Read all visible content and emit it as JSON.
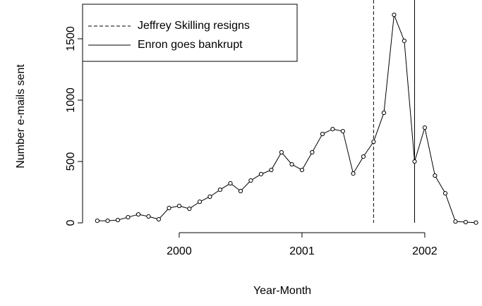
{
  "chart_data": {
    "type": "line",
    "xlabel": "Year-Month",
    "ylabel": "Number e-mails sent",
    "x": [
      1999.333,
      1999.417,
      1999.5,
      1999.583,
      1999.667,
      1999.75,
      1999.833,
      1999.917,
      2000.0,
      2000.083,
      2000.167,
      2000.25,
      2000.333,
      2000.417,
      2000.5,
      2000.583,
      2000.667,
      2000.75,
      2000.833,
      2000.917,
      2001.0,
      2001.083,
      2001.167,
      2001.25,
      2001.333,
      2001.417,
      2001.5,
      2001.583,
      2001.667,
      2001.75,
      2001.833,
      2001.917,
      2002.0,
      2002.083,
      2002.167,
      2002.25,
      2002.333,
      2002.417
    ],
    "series": [
      {
        "color": "#000000",
        "values": [
          17,
          17,
          23,
          46,
          69,
          52,
          29,
          121,
          138,
          115,
          172,
          213,
          270,
          322,
          259,
          345,
          397,
          431,
          575,
          477,
          431,
          575,
          724,
          764,
          747,
          402,
          540,
          661,
          897,
          1695,
          1483,
          500,
          776,
          385,
          241,
          11,
          6,
          2
        ]
      }
    ],
    "events": [
      {
        "label": "Jeffrey Skilling resigns",
        "x": 2001.583,
        "style": "dashed"
      },
      {
        "label": "Enron goes bankrupt",
        "x": 2001.917,
        "style": "solid"
      }
    ],
    "xlim": [
      1999.213,
      2002.466
    ],
    "ylim": [
      -80,
      1816
    ],
    "xticks": [
      2000,
      2001,
      2002
    ],
    "yticks": [
      0,
      500,
      1000,
      1500
    ],
    "legend": "top-left"
  }
}
